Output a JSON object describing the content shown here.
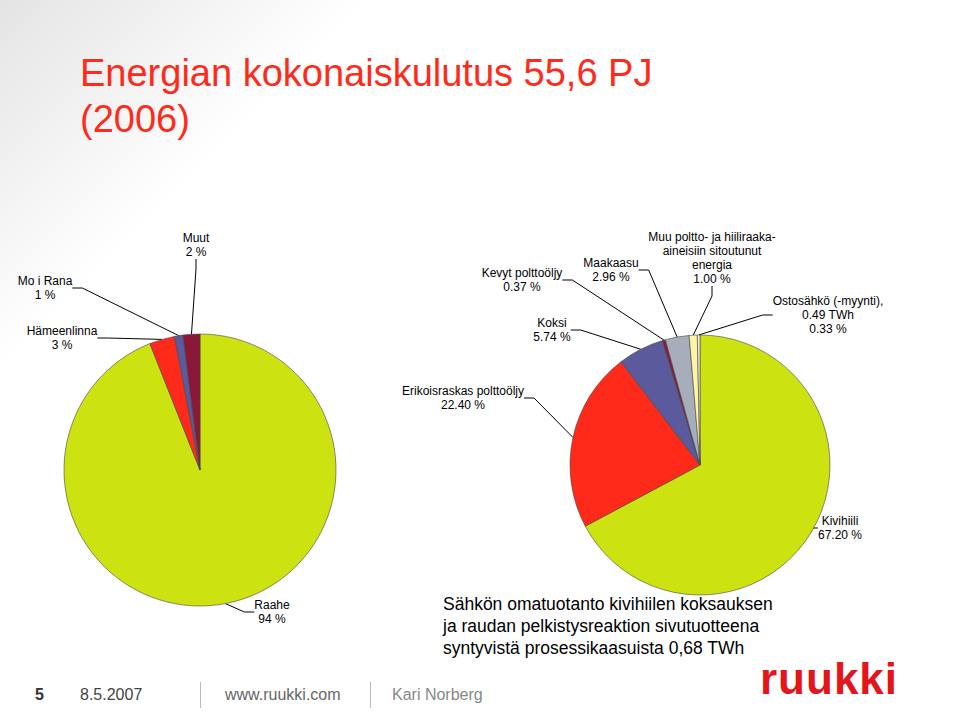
{
  "slide": {
    "title": "Energian kokonaiskulutus 55,6 PJ\n(2006)",
    "note": "Sähkön omatuotanto kivihiilen koksauksen\nja raudan pelkistysreaktion sivutuotteena\nsyntyvistä prosessikaasuista 0,68 TWh",
    "footer": {
      "page": "5",
      "date": "8.5.2007",
      "url": "www.ruukki.com",
      "author": "Kari Norberg",
      "logo": "ruukki"
    }
  },
  "chart_data": [
    {
      "type": "pie",
      "categories": [
        "Raahe",
        "Hämeenlinna",
        "Mo i Rana",
        "Muut"
      ],
      "values": [
        94,
        3,
        1,
        2
      ],
      "value_labels": [
        "94 %",
        "3 %",
        "1 %",
        "2 %"
      ],
      "colors": [
        "#cde311",
        "#ff2a1a",
        "#5b5a9c",
        "#8c1838"
      ],
      "data_labels": true
    },
    {
      "type": "pie",
      "categories": [
        "Kivihiili",
        "Erikoisraskas polttoöljy",
        "Koksi",
        "Kevyt polttoöljy",
        "Maakaasu",
        "Muu poltto- ja hiiliraaka-\naineisiin sitoutunut\nenergia",
        "Ostosähkö (-myynti),\n0.49 TWh"
      ],
      "values": [
        67.2,
        22.4,
        5.74,
        0.37,
        2.96,
        1.0,
        0.33
      ],
      "value_labels": [
        "67.20 %",
        "22.40 %",
        "5.74 %",
        "0.37 %",
        "2.96 %",
        "1.00 %",
        "0.33 %"
      ],
      "colors": [
        "#cde311",
        "#ff2a1a",
        "#5b5a9c",
        "#8c1838",
        "#a8adbb",
        "#fff3a6",
        "#f4f0d8"
      ],
      "data_labels": true
    }
  ]
}
